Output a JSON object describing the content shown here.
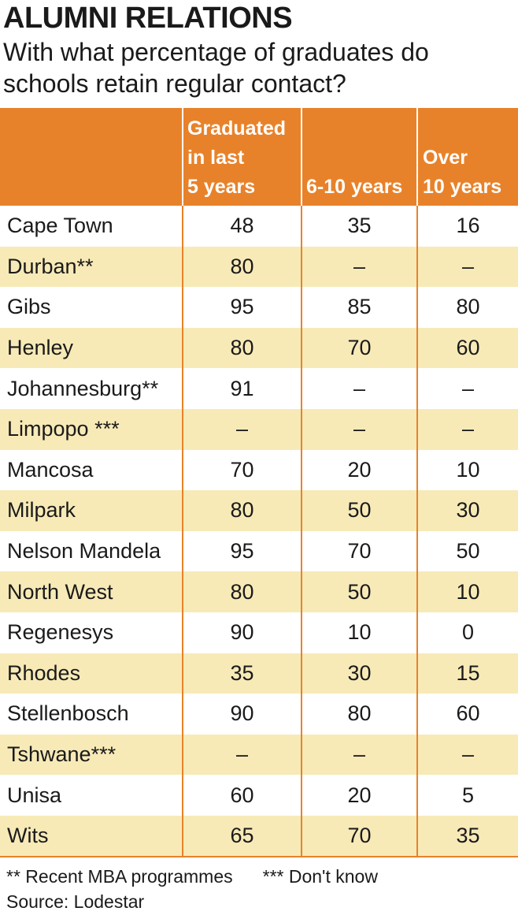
{
  "title": "ALUMNI RELATIONS",
  "subtitle": "With what percentage of graduates do schools retain regular contact?",
  "chart_data": {
    "type": "table",
    "columns": [
      "",
      "Graduated in last 5 years",
      "6-10 years",
      "Over 10 years"
    ],
    "header_lines": [
      [],
      [
        "Graduated",
        "in last",
        "5 years"
      ],
      [
        "6-10 years"
      ],
      [
        "Over",
        "10 years"
      ]
    ],
    "rows": [
      [
        "Cape Town",
        "48",
        "35",
        "16"
      ],
      [
        "Durban**",
        "80",
        "–",
        "–"
      ],
      [
        "Gibs",
        "95",
        "85",
        "80"
      ],
      [
        "Henley",
        "80",
        "70",
        "60"
      ],
      [
        "Johannesburg**",
        "91",
        "–",
        "–"
      ],
      [
        "Limpopo ***",
        "–",
        "–",
        "–"
      ],
      [
        "Mancosa",
        "70",
        "20",
        "10"
      ],
      [
        "Milpark",
        "80",
        "50",
        "30"
      ],
      [
        "Nelson Mandela",
        "95",
        "70",
        "50"
      ],
      [
        "North West",
        "80",
        "50",
        "10"
      ],
      [
        "Regenesys",
        "90",
        "10",
        "0"
      ],
      [
        "Rhodes",
        "35",
        "30",
        "15"
      ],
      [
        "Stellenbosch",
        "90",
        "80",
        "60"
      ],
      [
        "Tshwane***",
        "–",
        "–",
        "–"
      ],
      [
        "Unisa",
        "60",
        "20",
        "5"
      ],
      [
        "Wits",
        "65",
        "70",
        "35"
      ]
    ]
  },
  "footnotes": {
    "recent": "** Recent MBA programmes",
    "dont_know": "*** Don't know",
    "source": "Source: Lodestar"
  },
  "colors": {
    "header": "#e8822a",
    "stripe": "#f7eab7"
  }
}
